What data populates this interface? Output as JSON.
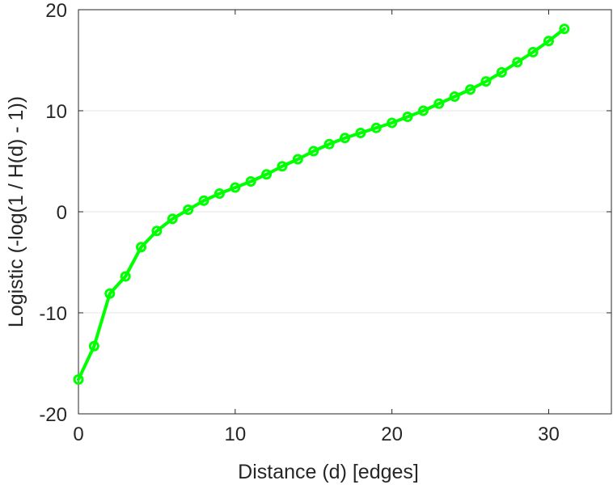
{
  "chart_data": {
    "type": "line",
    "title": "",
    "xlabel": "Distance (d) [edges]",
    "ylabel": "Logistic (-log(1 / H(d) - 1))",
    "xlim": [
      0,
      34
    ],
    "ylim": [
      -20,
      20
    ],
    "x_ticks": [
      0,
      10,
      20,
      30
    ],
    "y_ticks": [
      -20,
      -10,
      0,
      10,
      20
    ],
    "x_tick_labels": [
      "0",
      "10",
      "20",
      "30"
    ],
    "y_tick_labels": [
      "-20",
      "-10",
      "0",
      "10",
      "20"
    ],
    "grid": "horizontal",
    "legend": "none",
    "colors": {
      "series": "#00ff00",
      "axis": "#262626",
      "grid": "#e6e6e6"
    },
    "series": [
      {
        "marker": "circle",
        "x": [
          0,
          1,
          2,
          3,
          4,
          5,
          6,
          7,
          8,
          9,
          10,
          11,
          12,
          13,
          14,
          15,
          16,
          17,
          18,
          19,
          20,
          21,
          22,
          23,
          24,
          25,
          26,
          27,
          28,
          29,
          30,
          31
        ],
        "values": [
          -16.6,
          -13.3,
          -8.1,
          -6.4,
          -3.5,
          -1.9,
          -0.7,
          0.2,
          1.1,
          1.8,
          2.4,
          3.0,
          3.7,
          4.5,
          5.2,
          6.0,
          6.7,
          7.3,
          7.8,
          8.3,
          8.8,
          9.4,
          10.0,
          10.7,
          11.4,
          12.1,
          12.9,
          13.8,
          14.8,
          15.8,
          16.9,
          18.1
        ]
      }
    ]
  }
}
